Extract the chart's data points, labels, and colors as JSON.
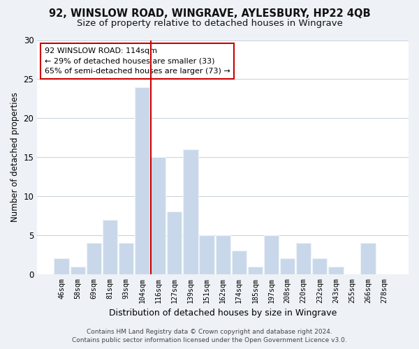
{
  "title": "92, WINSLOW ROAD, WINGRAVE, AYLESBURY, HP22 4QB",
  "subtitle": "Size of property relative to detached houses in Wingrave",
  "xlabel": "Distribution of detached houses by size in Wingrave",
  "ylabel": "Number of detached properties",
  "bin_labels": [
    "46sqm",
    "58sqm",
    "69sqm",
    "81sqm",
    "93sqm",
    "104sqm",
    "116sqm",
    "127sqm",
    "139sqm",
    "151sqm",
    "162sqm",
    "174sqm",
    "185sqm",
    "197sqm",
    "208sqm",
    "220sqm",
    "232sqm",
    "243sqm",
    "255sqm",
    "266sqm",
    "278sqm"
  ],
  "bar_heights": [
    2,
    1,
    4,
    7,
    4,
    24,
    15,
    8,
    16,
    5,
    5,
    3,
    1,
    5,
    2,
    4,
    2,
    1,
    0,
    4,
    0
  ],
  "bar_color": "#c8d8ea",
  "vline_bar_index": 6,
  "vline_color": "#cc0000",
  "annotation_text": "92 WINSLOW ROAD: 114sqm\n← 29% of detached houses are smaller (33)\n65% of semi-detached houses are larger (73) →",
  "ylim": [
    0,
    30
  ],
  "yticks": [
    0,
    5,
    10,
    15,
    20,
    25,
    30
  ],
  "footer_line1": "Contains HM Land Registry data © Crown copyright and database right 2024.",
  "footer_line2": "Contains public sector information licensed under the Open Government Licence v3.0.",
  "bg_color": "#eef2f7",
  "plot_bg_color": "#ffffff",
  "title_fontsize": 10.5,
  "subtitle_fontsize": 9.5,
  "grid_color": "#c5d0dc"
}
